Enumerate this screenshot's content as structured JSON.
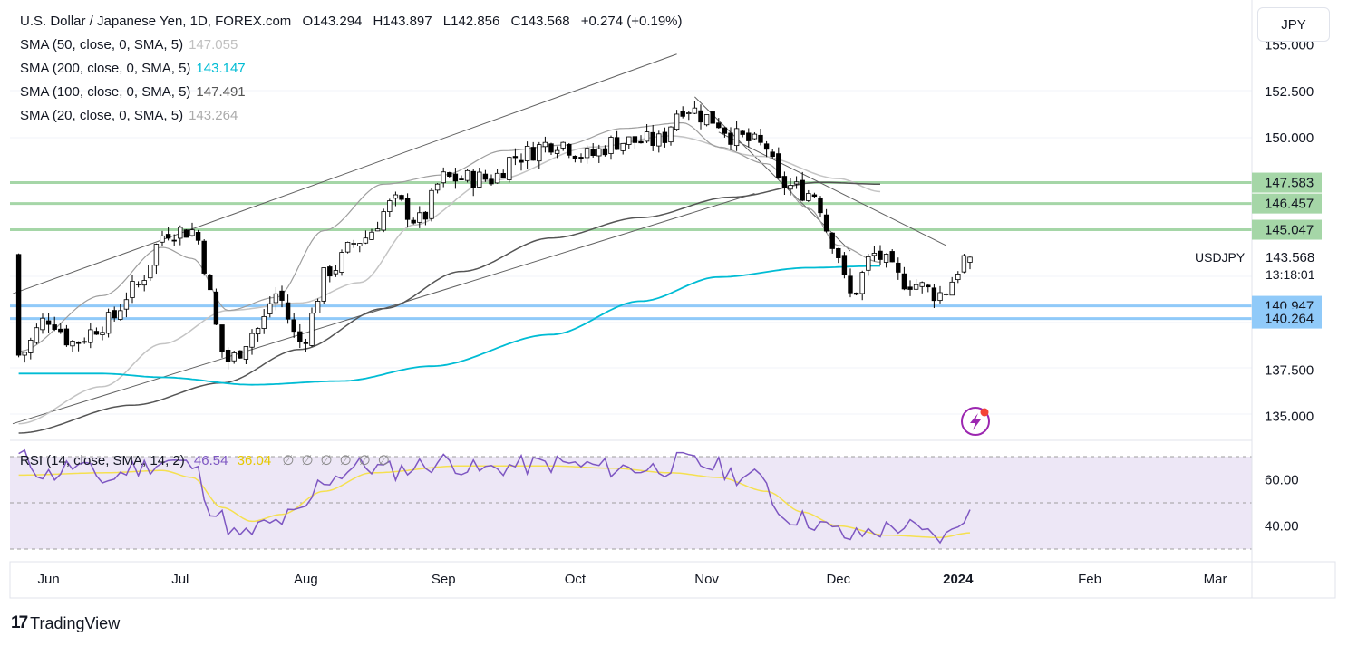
{
  "header": {
    "symbol": "U.S. Dollar / Japanese Yen, 1D, FOREX.com",
    "open": "O143.294",
    "high": "H143.897",
    "low": "L142.856",
    "close": "C143.568",
    "change": "+0.274 (+0.19%)",
    "currency": "JPY"
  },
  "indicators": [
    {
      "label": "SMA (50, close, 0, SMA, 5)",
      "value": "147.055",
      "color": "#c0c0c0"
    },
    {
      "label": "SMA (200, close, 0, SMA, 5)",
      "value": "143.147",
      "color": "#00bcd4"
    },
    {
      "label": "SMA (100, close, 0, SMA, 5)",
      "value": "147.491",
      "color": "#555555"
    },
    {
      "label": "SMA (20, close, 0, SMA, 5)",
      "value": "143.264",
      "color": "#aaaaaa"
    }
  ],
  "rsi_legend": {
    "label": "RSI (14, close, SMA, 14, 2)",
    "rsi": "46.54",
    "sma": "36.04",
    "empty_values": [
      "∅",
      "∅",
      "∅",
      "∅",
      "∅",
      "∅"
    ]
  },
  "price_label": {
    "symbol": "USDJPY",
    "price": "143.568",
    "countdown": "13:18:01"
  },
  "colors": {
    "up": "#ffffff",
    "down": "#000000",
    "resistance": "#a5d6a7",
    "support": "#90caf9",
    "sma200": "#00bcd4",
    "rsi": "#7e57c2",
    "rsi_sma": "#f5e050",
    "rsi_band": "#ede7f6"
  },
  "branding": "TradingView",
  "chart_data": [
    {
      "type": "candlestick",
      "y_ticks": [
        "152.500",
        "150.000",
        "137.500",
        "135.000"
      ],
      "top_tick_partial": "155.000",
      "ylim": [
        134.0,
        156.0
      ],
      "x_ticks": [
        "Jun",
        "Jul",
        "Aug",
        "Sep",
        "Oct",
        "Nov",
        "Dec",
        "2024",
        "Feb",
        "Mar"
      ],
      "levels_resistance": [
        "147.583",
        "146.457",
        "145.047"
      ],
      "levels_support": [
        "140.947",
        "140.264"
      ],
      "last_price": 143.568,
      "sma200_path_knots": [
        [
          1,
          137.3
        ],
        [
          15,
          137.3
        ],
        [
          25,
          137.1
        ],
        [
          40,
          136.7
        ],
        [
          55,
          136.9
        ],
        [
          70,
          137.7
        ],
        [
          90,
          139.4
        ],
        [
          105,
          141.2
        ],
        [
          118,
          142.5
        ],
        [
          133,
          143.0
        ],
        [
          145,
          143.1
        ]
      ],
      "sma100_path_knots": [
        [
          1,
          134.1
        ],
        [
          20,
          135.6
        ],
        [
          35,
          136.8
        ],
        [
          48,
          138.6
        ],
        [
          62,
          140.8
        ],
        [
          75,
          142.8
        ],
        [
          90,
          144.6
        ],
        [
          105,
          145.7
        ],
        [
          120,
          146.8
        ],
        [
          135,
          147.6
        ],
        [
          145,
          147.5
        ]
      ],
      "sma50_path_knots": [
        [
          1,
          134.6
        ],
        [
          15,
          136.6
        ],
        [
          25,
          138.9
        ],
        [
          36,
          140.7
        ],
        [
          48,
          141.1
        ],
        [
          58,
          142.2
        ],
        [
          67,
          145.3
        ],
        [
          80,
          147.7
        ],
        [
          97,
          149.5
        ],
        [
          110,
          150.1
        ],
        [
          125,
          149.0
        ],
        [
          138,
          147.8
        ],
        [
          145,
          147.1
        ]
      ],
      "sma20_path_knots": [
        [
          1,
          138.5
        ],
        [
          15,
          141.5
        ],
        [
          25,
          144.1
        ],
        [
          30,
          143.5
        ],
        [
          36,
          140.7
        ],
        [
          44,
          141.4
        ],
        [
          52,
          145.0
        ],
        [
          62,
          147.5
        ],
        [
          72,
          148.0
        ],
        [
          82,
          149.3
        ],
        [
          92,
          149.6
        ],
        [
          102,
          150.5
        ],
        [
          112,
          150.8
        ],
        [
          118,
          149.5
        ],
        [
          126,
          148.6
        ],
        [
          133,
          146.2
        ],
        [
          138,
          144.2
        ],
        [
          145,
          143.3
        ]
      ],
      "closes_knots": [
        [
          1,
          138.3
        ],
        [
          6,
          140.3
        ],
        [
          10,
          139.0
        ],
        [
          16,
          140.1
        ],
        [
          20,
          141.8
        ],
        [
          26,
          145.0
        ],
        [
          30,
          145.0
        ],
        [
          36,
          138.0
        ],
        [
          41,
          139.7
        ],
        [
          44,
          141.6
        ],
        [
          48,
          139.0
        ],
        [
          53,
          142.9
        ],
        [
          58,
          144.5
        ],
        [
          64,
          146.5
        ],
        [
          68,
          145.5
        ],
        [
          72,
          147.8
        ],
        [
          80,
          147.8
        ],
        [
          84,
          149.0
        ],
        [
          91,
          149.8
        ],
        [
          96,
          149.0
        ],
        [
          101,
          149.8
        ],
        [
          108,
          149.8
        ],
        [
          112,
          151.7
        ],
        [
          117,
          151.0
        ],
        [
          121,
          150.0
        ],
        [
          126,
          149.5
        ],
        [
          128,
          147.5
        ],
        [
          134,
          147.0
        ],
        [
          137,
          144.5
        ],
        [
          140,
          141.5
        ],
        [
          144,
          143.7
        ],
        [
          149,
          142.3
        ],
        [
          155,
          141.6
        ],
        [
          160,
          143.7
        ]
      ],
      "channel_lines": [
        [
          [
            0,
            141.6
          ],
          [
            111,
            154.5
          ]
        ],
        [
          [
            0,
            134.6
          ],
          [
            124,
            147.0
          ]
        ],
        [
          [
            114,
            152.2
          ],
          [
            140,
            143.9
          ]
        ],
        [
          [
            118,
            150.3
          ],
          [
            156,
            144.2
          ]
        ]
      ]
    },
    {
      "type": "line",
      "title": "RSI",
      "y_ticks": [
        "60.00",
        "40.00"
      ],
      "band": [
        30,
        70
      ],
      "midline": 50,
      "rsi_knots": [
        [
          1,
          70
        ],
        [
          6,
          62
        ],
        [
          10,
          66
        ],
        [
          16,
          60
        ],
        [
          20,
          65
        ],
        [
          26,
          68
        ],
        [
          30,
          66
        ],
        [
          34,
          45
        ],
        [
          38,
          35
        ],
        [
          42,
          40
        ],
        [
          48,
          45
        ],
        [
          52,
          60
        ],
        [
          58,
          66
        ],
        [
          64,
          64
        ],
        [
          68,
          66
        ],
        [
          72,
          68
        ],
        [
          78,
          64
        ],
        [
          84,
          66
        ],
        [
          91,
          67
        ],
        [
          96,
          66
        ],
        [
          101,
          65
        ],
        [
          108,
          65
        ],
        [
          112,
          68
        ],
        [
          117,
          66
        ],
        [
          121,
          62
        ],
        [
          126,
          60
        ],
        [
          128,
          45
        ],
        [
          134,
          42
        ],
        [
          137,
          38
        ],
        [
          140,
          35
        ],
        [
          144,
          38
        ],
        [
          149,
          40
        ],
        [
          153,
          36
        ],
        [
          156,
          35
        ],
        [
          160,
          47
        ]
      ],
      "rsi_sma_knots": [
        [
          1,
          62
        ],
        [
          15,
          63
        ],
        [
          25,
          64
        ],
        [
          30,
          61
        ],
        [
          35,
          48
        ],
        [
          40,
          42
        ],
        [
          45,
          45
        ],
        [
          52,
          55
        ],
        [
          60,
          63
        ],
        [
          75,
          66
        ],
        [
          90,
          66
        ],
        [
          100,
          65
        ],
        [
          110,
          63
        ],
        [
          118,
          61
        ],
        [
          126,
          55
        ],
        [
          132,
          46
        ],
        [
          138,
          40
        ],
        [
          146,
          36
        ],
        [
          155,
          35
        ],
        [
          160,
          37
        ]
      ]
    }
  ]
}
